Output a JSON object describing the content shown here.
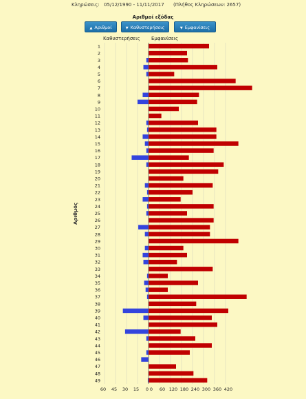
{
  "header": {
    "label": "Κληρώσεις:",
    "range": "05/12/1990 - 11/11/2017",
    "count": "(Πλήθος Κληρώσεων: 2657)"
  },
  "sort": {
    "title": "Αριθμοί εξόδας",
    "buttons": [
      {
        "label": "Αριθμοί",
        "icon": "up-arrow-icon"
      },
      {
        "label": "Καθυστερήσεις",
        "icon": "down-arrow-icon"
      },
      {
        "label": "Εμφανίσεις",
        "icon": "down-arrow-icon"
      }
    ]
  },
  "colors": {
    "background": "#fcf8c4",
    "delays": "#3344dd",
    "appearances": "#c00000",
    "button": "#2a80bd"
  },
  "chart_data": {
    "type": "bar",
    "orientation": "horizontal-diverging",
    "ylabel": "Αριθμός",
    "categories": [
      "1",
      "2",
      "3",
      "4",
      "5",
      "6",
      "7",
      "8",
      "9",
      "10",
      "11",
      "12",
      "13",
      "14",
      "15",
      "16",
      "17",
      "18",
      "19",
      "20",
      "21",
      "22",
      "23",
      "24",
      "25",
      "26",
      "27",
      "28",
      "29",
      "30",
      "31",
      "32",
      "33",
      "34",
      "35",
      "36",
      "37",
      "38",
      "39",
      "40",
      "41",
      "42",
      "43",
      "44",
      "45",
      "46",
      "47",
      "48",
      "49"
    ],
    "series": [
      {
        "name": "Καθυστερήσεις",
        "side": "left",
        "values": [
          0,
          0,
          3,
          7,
          3,
          0,
          0,
          8,
          15,
          0,
          0,
          3,
          2,
          8,
          5,
          3,
          23,
          3,
          0,
          0,
          5,
          2,
          8,
          2,
          3,
          0,
          14,
          5,
          0,
          5,
          8,
          7,
          0,
          2,
          6,
          4,
          2,
          0,
          35,
          7,
          0,
          32,
          3,
          0,
          3,
          10,
          0,
          0,
          1
        ]
      },
      {
        "name": "Εμφανίσεις",
        "side": "right",
        "values": [
          330,
          210,
          215,
          375,
          140,
          475,
          565,
          275,
          265,
          165,
          70,
          270,
          370,
          370,
          490,
          355,
          220,
          410,
          380,
          190,
          350,
          240,
          175,
          355,
          210,
          355,
          335,
          335,
          490,
          190,
          210,
          155,
          350,
          105,
          270,
          105,
          535,
          260,
          435,
          345,
          375,
          175,
          255,
          345,
          225,
          0,
          150,
          245,
          320
        ]
      }
    ],
    "left_axis_ticks": [
      "60",
      "45",
      "30",
      "15",
      "0"
    ],
    "right_axis_ticks": [
      "0",
      "60",
      "120",
      "180",
      "240",
      "300",
      "360",
      "420"
    ],
    "left_xlim": [
      0,
      60
    ],
    "right_xlim": [
      0,
      420
    ],
    "grid": true
  }
}
